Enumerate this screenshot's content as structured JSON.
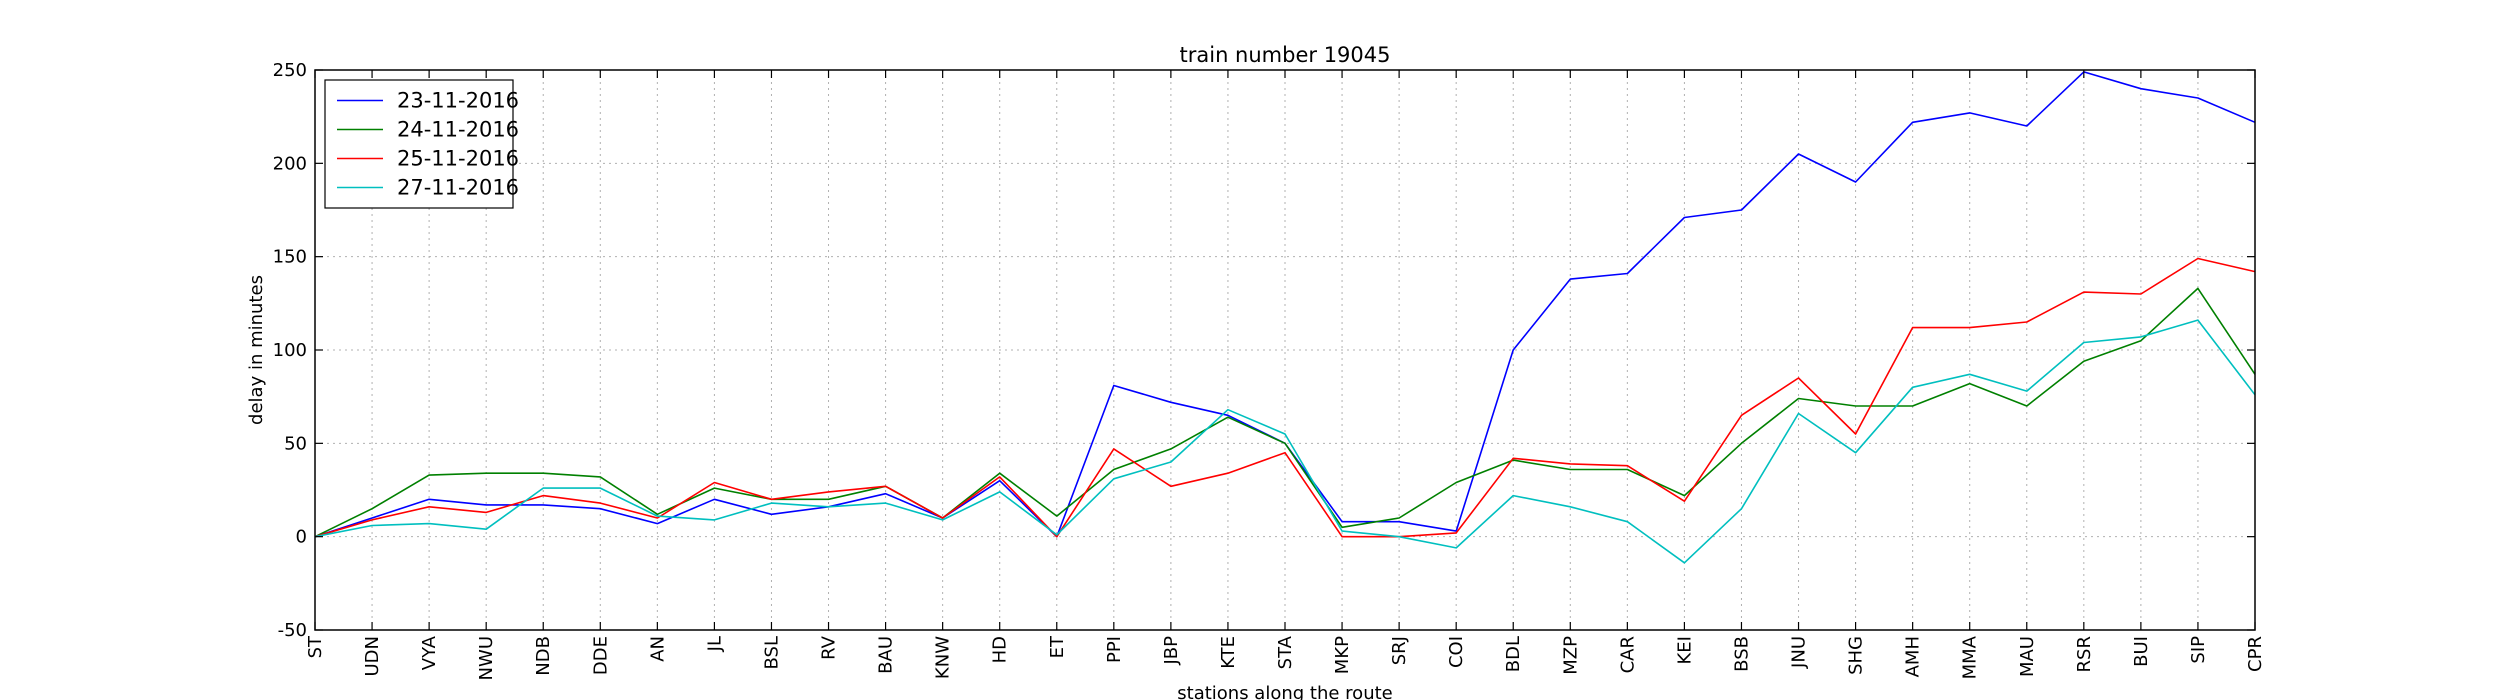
{
  "chart_data": {
    "type": "line",
    "title": "train number 19045",
    "xlabel": "stations along the route",
    "ylabel": "delay in minutes",
    "ylim": [
      -50,
      250
    ],
    "yticks": [
      -50,
      0,
      50,
      100,
      150,
      200,
      250
    ],
    "grid": true,
    "legend_position": "top-left",
    "categories": [
      "ST",
      "UDN",
      "VYA",
      "NWU",
      "NDB",
      "DDE",
      "AN",
      "JL",
      "BSL",
      "RV",
      "BAU",
      "KNW",
      "HD",
      "ET",
      "PPI",
      "JBP",
      "KTE",
      "STA",
      "MKP",
      "SRJ",
      "COI",
      "BDL",
      "MZP",
      "CAR",
      "KEI",
      "BSB",
      "JNU",
      "SHG",
      "AMH",
      "MMA",
      "MAU",
      "RSR",
      "BUI",
      "SIP",
      "CPR"
    ],
    "series": [
      {
        "name": "23-11-2016",
        "color": "#0000ff",
        "values": [
          0,
          10,
          20,
          17,
          17,
          15,
          7,
          20,
          12,
          16,
          23,
          10,
          30,
          0,
          81,
          72,
          65,
          50,
          8,
          8,
          3,
          100,
          138,
          141,
          171,
          175,
          205,
          190,
          222,
          227,
          220,
          249,
          240,
          235,
          222
        ]
      },
      {
        "name": "24-11-2016",
        "color": "#008000",
        "values": [
          0,
          15,
          33,
          34,
          34,
          32,
          12,
          26,
          20,
          20,
          27,
          10,
          34,
          11,
          36,
          47,
          64,
          50,
          5,
          10,
          29,
          41,
          36,
          36,
          22,
          50,
          74,
          70,
          70,
          82,
          70,
          94,
          105,
          133,
          87
        ]
      },
      {
        "name": "25-11-2016",
        "color": "#ff0000",
        "values": [
          0,
          9,
          16,
          13,
          22,
          18,
          10,
          29,
          20,
          24,
          27,
          10,
          32,
          0,
          47,
          27,
          34,
          45,
          0,
          0,
          2,
          42,
          39,
          38,
          19,
          65,
          85,
          55,
          112,
          112,
          115,
          131,
          130,
          149,
          142
        ]
      },
      {
        "name": "27-11-2016",
        "color": "#00bfbf",
        "values": [
          0,
          6,
          7,
          4,
          26,
          26,
          11,
          9,
          18,
          16,
          18,
          9,
          24,
          1,
          31,
          40,
          68,
          55,
          3,
          0,
          -6,
          22,
          16,
          8,
          -14,
          15,
          66,
          45,
          80,
          87,
          78,
          104,
          107,
          116,
          76
        ]
      }
    ]
  }
}
